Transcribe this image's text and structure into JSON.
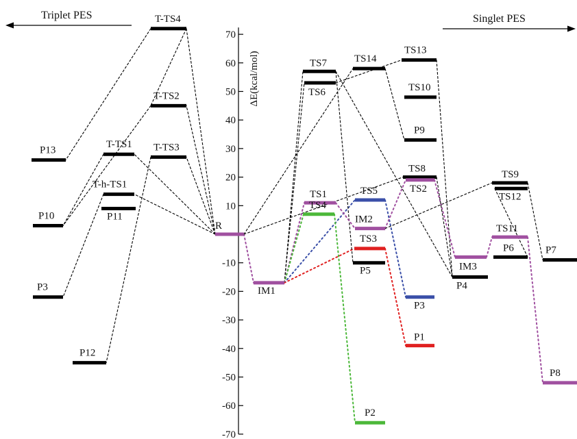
{
  "headers": {
    "left": "Triplet PES",
    "right": "Singlet PES"
  },
  "y_axis": {
    "label": "ΔE(kcal/mol)",
    "min": -70,
    "max": 70,
    "step": 10
  },
  "colors": {
    "black": "#000000",
    "purple": "#a050a0",
    "blue": "#3a4fa8",
    "red": "#e02020",
    "green": "#4cb83a"
  },
  "levels": [
    {
      "id": "P13",
      "label": "P13",
      "energy": 26,
      "color": "black"
    },
    {
      "id": "P10",
      "label": "P10",
      "energy": 3,
      "color": "black"
    },
    {
      "id": "P3t",
      "label": "P3",
      "energy": -22,
      "color": "black"
    },
    {
      "id": "P12",
      "label": "P12",
      "energy": -45,
      "color": "black"
    },
    {
      "id": "TTS1",
      "label": "T-TS1",
      "energy": 28,
      "color": "black"
    },
    {
      "id": "ThTS1",
      "label": "T-h-TS1",
      "energy": 14,
      "color": "black"
    },
    {
      "id": "P11",
      "label": "P11",
      "energy": 9,
      "color": "black"
    },
    {
      "id": "TTS4",
      "label": "T-TS4",
      "energy": 72,
      "color": "black"
    },
    {
      "id": "TTS2",
      "label": "T-TS2",
      "energy": 45,
      "color": "black"
    },
    {
      "id": "TTS3",
      "label": "T-TS3",
      "energy": 27,
      "color": "black"
    },
    {
      "id": "R",
      "label": "R",
      "energy": 0,
      "color": "purple"
    },
    {
      "id": "IM1",
      "label": "IM1",
      "energy": -17,
      "color": "purple"
    },
    {
      "id": "TS7",
      "label": "TS7",
      "energy": 57,
      "color": "black"
    },
    {
      "id": "TS6",
      "label": "TS6",
      "energy": 53,
      "color": "black"
    },
    {
      "id": "TS1",
      "label": "TS1",
      "energy": 11,
      "color": "purple"
    },
    {
      "id": "TS4",
      "label": "TS4",
      "energy": 7,
      "color": "green"
    },
    {
      "id": "TS14",
      "label": "TS14",
      "energy": 58,
      "color": "black"
    },
    {
      "id": "TS5",
      "label": "TS5",
      "energy": 12,
      "color": "blue"
    },
    {
      "id": "IM2",
      "label": "IM2",
      "energy": 2,
      "color": "purple"
    },
    {
      "id": "TS3",
      "label": "TS3",
      "energy": -5,
      "color": "red"
    },
    {
      "id": "P5",
      "label": "P5",
      "energy": -10,
      "color": "black"
    },
    {
      "id": "P2",
      "label": "P2",
      "energy": -66,
      "color": "green"
    },
    {
      "id": "TS13",
      "label": "TS13",
      "energy": 61,
      "color": "black"
    },
    {
      "id": "TS10",
      "label": "TS10",
      "energy": 48,
      "color": "black"
    },
    {
      "id": "P9",
      "label": "P9",
      "energy": 33,
      "color": "black"
    },
    {
      "id": "TS8",
      "label": "TS8",
      "energy": 20,
      "color": "black"
    },
    {
      "id": "TS2",
      "label": "TS2",
      "energy": 19,
      "color": "purple"
    },
    {
      "id": "P3s",
      "label": "P3",
      "energy": -22,
      "color": "blue"
    },
    {
      "id": "P1",
      "label": "P1",
      "energy": -39,
      "color": "red"
    },
    {
      "id": "IM3",
      "label": "IM3",
      "energy": -8,
      "color": "purple"
    },
    {
      "id": "P4",
      "label": "P4",
      "energy": -15,
      "color": "black"
    },
    {
      "id": "TS9",
      "label": "TS9",
      "energy": 18,
      "color": "black"
    },
    {
      "id": "TS12",
      "label": "TS12",
      "energy": 16,
      "color": "black"
    },
    {
      "id": "TS11",
      "label": "TS11",
      "energy": -1,
      "color": "purple"
    },
    {
      "id": "P6",
      "label": "P6",
      "energy": -8,
      "color": "black"
    },
    {
      "id": "P7",
      "label": "P7",
      "energy": -9,
      "color": "black"
    },
    {
      "id": "P8",
      "label": "P8",
      "energy": -52,
      "color": "purple"
    }
  ],
  "connections": [
    {
      "from": "R",
      "to": "TTS4",
      "color": "black"
    },
    {
      "from": "TTS4",
      "to": "TTS2",
      "color": "black"
    },
    {
      "from": "TTS4",
      "to": "P13",
      "color": "black"
    },
    {
      "from": "R",
      "to": "TTS2",
      "color": "black"
    },
    {
      "from": "TTS2",
      "to": "P10",
      "color": "black"
    },
    {
      "from": "R",
      "to": "TTS3",
      "color": "black"
    },
    {
      "from": "TTS3",
      "to": "P12",
      "color": "black"
    },
    {
      "from": "R",
      "to": "TTS1",
      "color": "black"
    },
    {
      "from": "R",
      "to": "ThTS1",
      "color": "black"
    },
    {
      "from": "TTS1",
      "to": "P10",
      "color": "black"
    },
    {
      "from": "ThTS1",
      "to": "P3t",
      "color": "black"
    },
    {
      "from": "R",
      "to": "IM1",
      "color": "purple"
    },
    {
      "from": "R",
      "to": "TS14",
      "color": "black"
    },
    {
      "from": "R",
      "to": "TS8",
      "color": "black"
    },
    {
      "from": "IM1",
      "to": "TS7",
      "color": "black"
    },
    {
      "from": "IM1",
      "to": "TS6",
      "color": "black"
    },
    {
      "from": "IM1",
      "to": "TS1",
      "color": "purple"
    },
    {
      "from": "IM1",
      "to": "TS4",
      "color": "green"
    },
    {
      "from": "IM1",
      "to": "TS5",
      "color": "blue"
    },
    {
      "from": "IM1",
      "to": "TS3",
      "color": "red"
    },
    {
      "from": "TS7",
      "to": "P5",
      "color": "black"
    },
    {
      "from": "TS7",
      "to": "P4",
      "color": "black"
    },
    {
      "from": "TS6",
      "to": "TS13",
      "color": "black"
    },
    {
      "from": "TS1",
      "to": "IM2",
      "color": "purple"
    },
    {
      "from": "TS4",
      "to": "P2",
      "color": "green"
    },
    {
      "from": "TS5",
      "to": "P3s",
      "color": "blue"
    },
    {
      "from": "TS3",
      "to": "P1",
      "color": "red"
    },
    {
      "from": "TS14",
      "to": "P9",
      "color": "black"
    },
    {
      "from": "TS13",
      "to": "P4",
      "color": "black"
    },
    {
      "from": "IM2",
      "to": "TS2",
      "color": "purple"
    },
    {
      "from": "IM2",
      "to": "TS9",
      "color": "black"
    },
    {
      "from": "TS2",
      "to": "IM3",
      "color": "purple"
    },
    {
      "from": "TS8",
      "to": "P4",
      "color": "black"
    },
    {
      "from": "IM3",
      "to": "TS11",
      "color": "purple"
    },
    {
      "from": "TS11",
      "to": "P8",
      "color": "purple"
    },
    {
      "from": "TS9",
      "to": "P7",
      "color": "black"
    },
    {
      "from": "TS12",
      "to": "P6",
      "color": "black"
    }
  ]
}
